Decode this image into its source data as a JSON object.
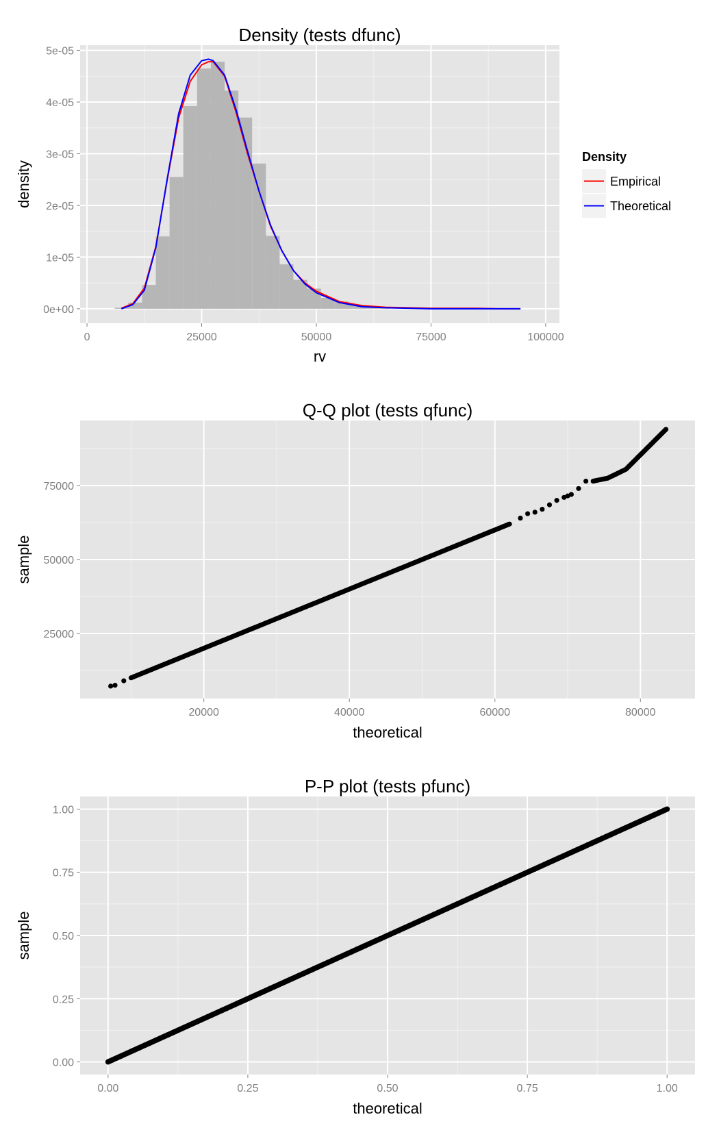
{
  "chart_data": [
    {
      "type": "histogram+line",
      "title": "Density (tests dfunc)",
      "xlabel": "rv",
      "ylabel": "density",
      "xlim": [
        -1500,
        103000
      ],
      "ylim": [
        -2.8e-06,
        5.1e-05
      ],
      "xticks": [
        0,
        25000,
        50000,
        75000,
        100000
      ],
      "xtick_labels": [
        "0",
        "25000",
        "50000",
        "75000",
        "100000"
      ],
      "yticks": [
        0,
        1e-05,
        2e-05,
        3e-05,
        4e-05,
        5e-05
      ],
      "ytick_labels": [
        "0e+00",
        "1e-05",
        "2e-05",
        "3e-05",
        "4e-05",
        "5e-05"
      ],
      "histogram": {
        "bin_edges": [
          6000,
          9000,
          12000,
          15000,
          18000,
          21000,
          24000,
          27000,
          30000,
          33000,
          36000,
          39000,
          42000,
          45000,
          48000,
          51000,
          54000,
          57000,
          60000,
          63000,
          66000
        ],
        "values": [
          2e-07,
          1.2e-06,
          4.6e-06,
          1.4e-05,
          2.55e-05,
          3.92e-05,
          4.65e-05,
          4.78e-05,
          4.22e-05,
          3.7e-05,
          2.81e-05,
          1.41e-05,
          8.6e-06,
          5.6e-06,
          3.9e-06,
          2.1e-06,
          1.4e-06,
          8e-07,
          5e-07,
          2e-07
        ],
        "color": "#b3b3b3"
      },
      "series": [
        {
          "name": "Empirical",
          "color": "#ff0000",
          "x": [
            7500,
            10000,
            12500,
            15000,
            17500,
            20000,
            22500,
            25000,
            26500,
            27500,
            30000,
            32500,
            35000,
            37500,
            40000,
            42500,
            45000,
            47500,
            50000,
            55000,
            60000,
            65000,
            70000,
            75000,
            80000,
            85000,
            90000,
            94500
          ],
          "y": [
            1e-07,
            1e-06,
            4e-06,
            1.2e-05,
            2.5e-05,
            3.7e-05,
            4.4e-05,
            4.72e-05,
            4.78e-05,
            4.78e-05,
            4.5e-05,
            3.8e-05,
            3e-05,
            2.28e-05,
            1.6e-05,
            1.12e-05,
            7.4e-06,
            5e-06,
            3.4e-06,
            1.4e-06,
            6e-07,
            3e-07,
            2e-07,
            1e-07,
            1e-07,
            1e-07,
            0.0,
            0.0
          ]
        },
        {
          "name": "Theoretical",
          "color": "#0000ff",
          "x": [
            7500,
            10000,
            12500,
            15000,
            17500,
            20000,
            22500,
            25000,
            26500,
            27500,
            30000,
            32500,
            35000,
            37500,
            40000,
            42500,
            45000,
            47500,
            50000,
            55000,
            60000,
            65000,
            70000,
            75000,
            80000,
            85000,
            90000,
            94500
          ],
          "y": [
            0.0,
            8e-07,
            3.6e-06,
            1.18e-05,
            2.52e-05,
            3.78e-05,
            4.52e-05,
            4.8e-05,
            4.83e-05,
            4.8e-05,
            4.52e-05,
            3.85e-05,
            3.05e-05,
            2.28e-05,
            1.62e-05,
            1.12e-05,
            7.4e-06,
            4.8e-06,
            3.1e-06,
            1.2e-06,
            4e-07,
            2e-07,
            1e-07,
            0.0,
            0.0,
            0.0,
            0.0,
            0.0
          ]
        }
      ],
      "legend": {
        "title": "Density",
        "position": "right",
        "entries": [
          "Empirical",
          "Theoretical"
        ]
      },
      "grid": true
    },
    {
      "type": "scatter",
      "title": "Q-Q plot (tests qfunc)",
      "xlabel": "theoretical",
      "ylabel": "sample",
      "xlim": [
        3000,
        87500
      ],
      "ylim": [
        3000,
        97000
      ],
      "xticks": [
        20000,
        40000,
        60000,
        80000
      ],
      "xtick_labels": [
        "20000",
        "40000",
        "60000",
        "80000"
      ],
      "yticks": [
        25000,
        50000,
        75000
      ],
      "ytick_labels": [
        "25000",
        "50000",
        "75000"
      ],
      "series": [
        {
          "color": "#000000",
          "x": [
            7200,
            7800,
            9000,
            10000,
            12000,
            15000,
            20000,
            25000,
            30000,
            35000,
            40000,
            45000,
            50000,
            55000,
            58000,
            60000,
            62000,
            63500,
            64500,
            65500,
            66500,
            67500,
            68500,
            69500,
            70000,
            70500,
            71500,
            72500,
            73500,
            75500,
            78000,
            83500
          ],
          "y": [
            7200,
            7500,
            9000,
            10000,
            12000,
            15000,
            20000,
            25000,
            30000,
            35000,
            40000,
            45000,
            50000,
            55000,
            58000,
            60000,
            62000,
            64000,
            65500,
            66000,
            67000,
            68500,
            70000,
            71000,
            71500,
            72000,
            74000,
            76500,
            76500,
            77500,
            80500,
            94000
          ]
        }
      ],
      "grid": true
    },
    {
      "type": "scatter",
      "title": "P-P plot (tests pfunc)",
      "xlabel": "theoretical",
      "ylabel": "sample",
      "xlim": [
        -0.05,
        1.05
      ],
      "ylim": [
        -0.05,
        1.05
      ],
      "xticks": [
        0,
        0.25,
        0.5,
        0.75,
        1
      ],
      "xtick_labels": [
        "0.00",
        "0.25",
        "0.50",
        "0.75",
        "1.00"
      ],
      "yticks": [
        0,
        0.25,
        0.5,
        0.75,
        1
      ],
      "ytick_labels": [
        "0.00",
        "0.25",
        "0.50",
        "0.75",
        "1.00"
      ],
      "series": [
        {
          "color": "#000000",
          "x": [
            0,
            1
          ],
          "y": [
            0,
            1
          ]
        }
      ],
      "grid": true
    }
  ]
}
